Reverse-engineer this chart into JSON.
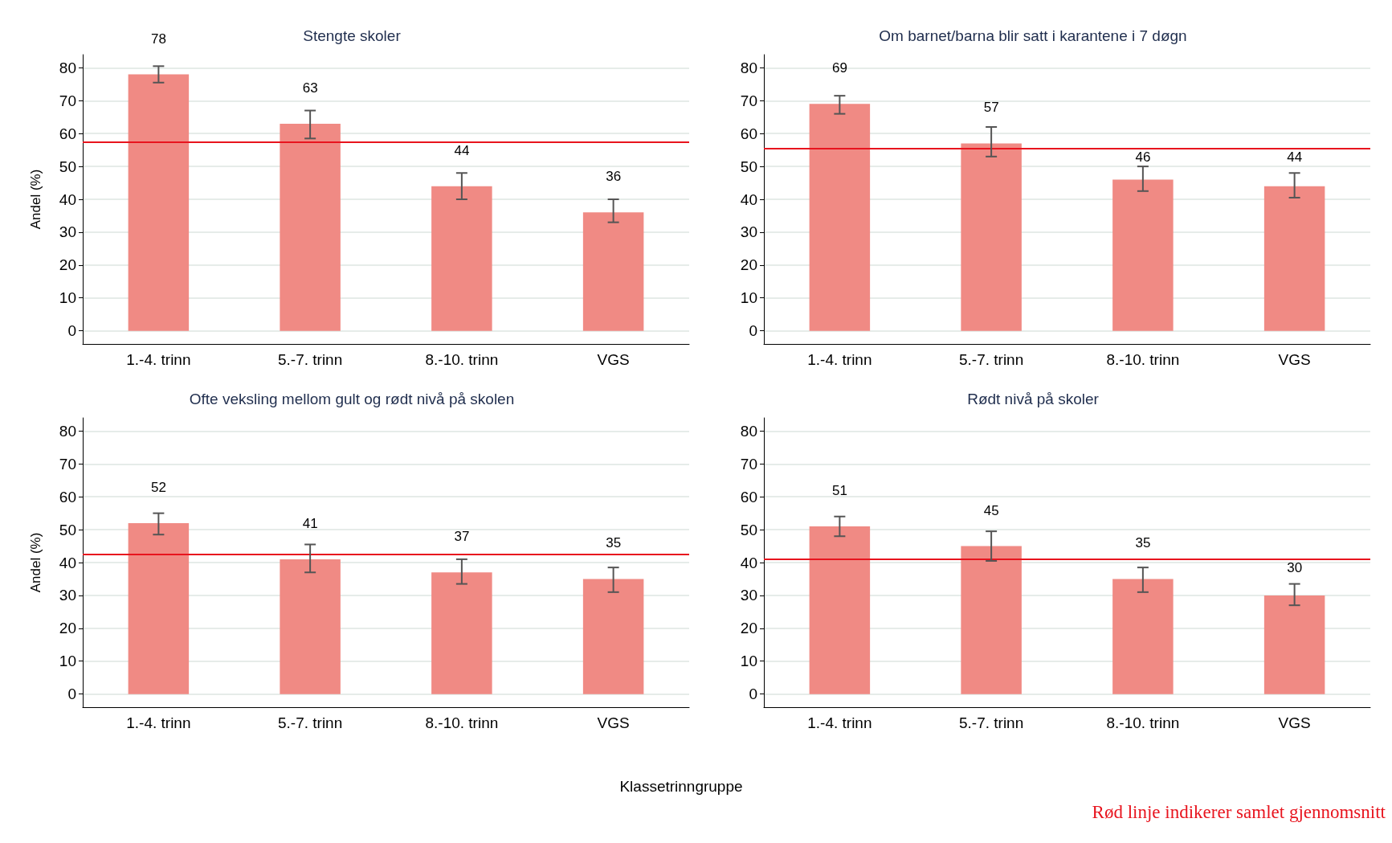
{
  "chart_data": [
    {
      "type": "bar",
      "title": "Stengte skoler",
      "ylabel": "Andel (%)",
      "categories": [
        "1.-4. trinn",
        "5.-7. trinn",
        "8.-10. trinn",
        "VGS"
      ],
      "values": [
        78,
        63,
        44,
        36
      ],
      "errors": [
        [
          75.5,
          80.5
        ],
        [
          58.5,
          67
        ],
        [
          40,
          48
        ],
        [
          33,
          40
        ]
      ],
      "color": "#f08a84",
      "data_labels": true,
      "ylim": [
        -4,
        84
      ],
      "yticks": [
        0,
        10,
        20,
        30,
        40,
        50,
        60,
        70,
        80
      ],
      "grid": "y",
      "ref_lines": [
        {
          "axis": "y",
          "value": 57.5,
          "color": "#e8141e"
        }
      ]
    },
    {
      "type": "bar",
      "title": "Om barnet/barna blir satt i karantene i 7 døgn",
      "categories": [
        "1.-4. trinn",
        "5.-7. trinn",
        "8.-10. trinn",
        "VGS"
      ],
      "values": [
        69,
        57,
        46,
        44
      ],
      "errors": [
        [
          66,
          71.5
        ],
        [
          53,
          62
        ],
        [
          42.5,
          50
        ],
        [
          40.5,
          48
        ]
      ],
      "color": "#f08a84",
      "data_labels": true,
      "ylim": [
        -4,
        84
      ],
      "yticks": [
        0,
        10,
        20,
        30,
        40,
        50,
        60,
        70,
        80
      ],
      "grid": "y",
      "ref_lines": [
        {
          "axis": "y",
          "value": 55.5,
          "color": "#e8141e"
        }
      ]
    },
    {
      "type": "bar",
      "title": "Ofte veksling mellom gult og rødt nivå på skolen",
      "ylabel": "Andel (%)",
      "xlabel": "Klassetrinngruppe",
      "categories": [
        "1.-4. trinn",
        "5.-7. trinn",
        "8.-10. trinn",
        "VGS"
      ],
      "values": [
        52,
        41,
        37,
        35
      ],
      "errors": [
        [
          48.5,
          55
        ],
        [
          37,
          45.5
        ],
        [
          33.5,
          41
        ],
        [
          31,
          38.5
        ]
      ],
      "color": "#f08a84",
      "data_labels": true,
      "ylim": [
        -4,
        84
      ],
      "yticks": [
        0,
        10,
        20,
        30,
        40,
        50,
        60,
        70,
        80
      ],
      "grid": "y",
      "ref_lines": [
        {
          "axis": "y",
          "value": 42.5,
          "color": "#e8141e"
        }
      ]
    },
    {
      "type": "bar",
      "title": "Rødt nivå på skoler",
      "categories": [
        "1.-4. trinn",
        "5.-7. trinn",
        "8.-10. trinn",
        "VGS"
      ],
      "values": [
        51,
        45,
        35,
        30
      ],
      "errors": [
        [
          48,
          54
        ],
        [
          40.5,
          49.5
        ],
        [
          31,
          38.5
        ],
        [
          27,
          33.5
        ]
      ],
      "color": "#f08a84",
      "data_labels": true,
      "ylim": [
        -4,
        84
      ],
      "yticks": [
        0,
        10,
        20,
        30,
        40,
        50,
        60,
        70,
        80
      ],
      "grid": "y",
      "ref_lines": [
        {
          "axis": "y",
          "value": 41,
          "color": "#e8141e"
        }
      ],
      "annotations": [
        "Rød linje indikerer samlet gjennomsnitt"
      ]
    }
  ]
}
